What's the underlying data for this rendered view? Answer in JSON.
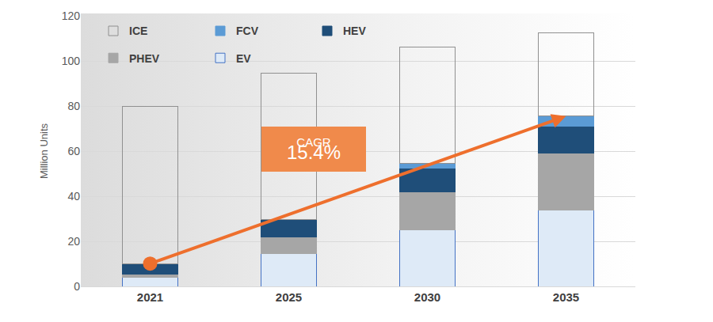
{
  "chart_data": {
    "type": "bar",
    "stacked": true,
    "categories": [
      "2021",
      "2025",
      "2030",
      "2035"
    ],
    "ylabel": "Million Units",
    "ylim": [
      0,
      120
    ],
    "yticks": [
      0,
      20,
      40,
      60,
      80,
      100,
      120
    ],
    "grid": true,
    "legend": "upper left",
    "series": [
      {
        "name": "EV",
        "color": "#deeaf7",
        "values": [
          4,
          14.5,
          25,
          34
        ]
      },
      {
        "name": "PHEV",
        "color": "#a6a6a6",
        "values": [
          1.5,
          7.5,
          17,
          25
        ]
      },
      {
        "name": "HEV",
        "color": "#1f4e79",
        "values": [
          4.5,
          7.5,
          10.5,
          12
        ]
      },
      {
        "name": "FCV",
        "color": "#5b9bd5",
        "values": [
          0.1,
          0.3,
          2,
          4.5
        ]
      },
      {
        "name": "ICE",
        "color": "#909090",
        "values": [
          69.9,
          64.7,
          51.5,
          37
        ]
      }
    ],
    "annotations": [
      "CAGR",
      "15.4%"
    ]
  }
}
